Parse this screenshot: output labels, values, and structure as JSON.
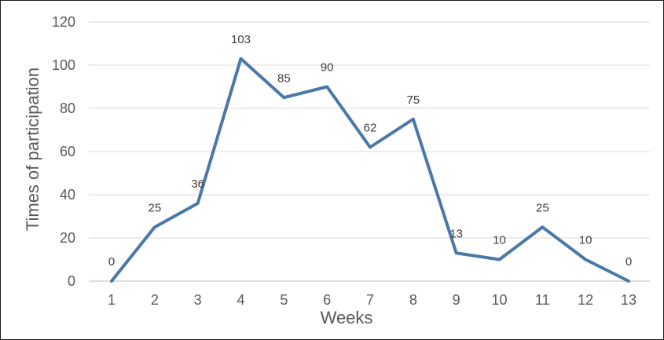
{
  "chart_data": {
    "type": "line",
    "title": "",
    "xlabel": "Weeks",
    "ylabel": "Times of participation",
    "x": [
      1,
      2,
      3,
      4,
      5,
      6,
      7,
      8,
      9,
      10,
      11,
      12,
      13
    ],
    "series": [
      {
        "values": [
          0,
          25,
          36,
          103,
          85,
          90,
          62,
          75,
          13,
          10,
          25,
          10,
          0
        ],
        "color": "#4a78a8"
      }
    ],
    "ylim": [
      0,
      120
    ],
    "yticks": [
      0,
      20,
      40,
      60,
      80,
      100,
      120
    ],
    "grid": true,
    "legend": "none",
    "data_labels": true
  }
}
